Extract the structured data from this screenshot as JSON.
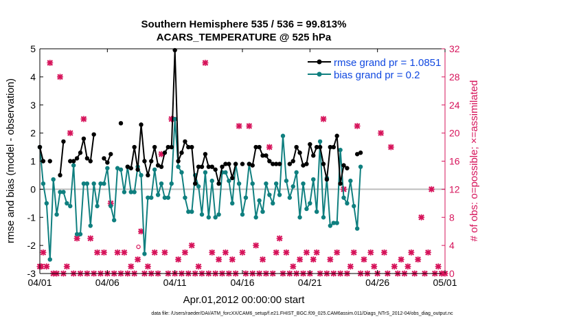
{
  "chart_data": {
    "type": "line",
    "title": "Southern Hemisphere 535 / 536 = 99.813%",
    "subtitle": "ACARS_TEMPERATURE @ 525 hPa",
    "xlabel": "Apr.01,2012 00:00:00 start",
    "ylabel_left": "rmse and bias (model - observation)",
    "ylabel_right": "# of obs: o=possible; ×=assimilated",
    "footer": "data file: /Users/raeder/DAI/ATM_forcXX/CAM6_setup/f.e21.FHIST_BGC.f09_025.CAM6assim.011/Diags_NTrS_2012-04/obs_diag_output.nc",
    "xlim": [
      0,
      30
    ],
    "ylim_left": [
      -3,
      5
    ],
    "ylim_right": [
      0,
      32
    ],
    "x_ticks": [
      0,
      5,
      10,
      15,
      20,
      25,
      30
    ],
    "x_tick_labels": [
      "04/01",
      "04/06",
      "04/11",
      "04/16",
      "04/21",
      "04/26",
      "05/01"
    ],
    "y_left_ticks": [
      -3,
      -2,
      -1,
      0,
      1,
      2,
      3,
      4,
      5
    ],
    "y_right_ticks": [
      0,
      4,
      8,
      12,
      16,
      20,
      24,
      28,
      32
    ],
    "zero_line": 0,
    "colors": {
      "rmse": "#000000",
      "bias": "#0f7f7f",
      "obs": "#d6135a",
      "zero": "#bdbdbd",
      "legend_text": "#1048e0"
    },
    "legend": {
      "placement": "top-right",
      "entries": [
        "rmse grand pr = 1.0851",
        "bias grand pr = 0.2"
      ]
    },
    "series": [
      {
        "name": "rmse",
        "points": [
          [
            0.0,
            1.5
          ],
          [
            0.25,
            1.0
          ],
          [
            0.5,
            null
          ],
          [
            0.75,
            1.0
          ],
          [
            1.0,
            null
          ],
          [
            1.25,
            null
          ],
          [
            1.5,
            0.5
          ],
          [
            1.75,
            1.7
          ],
          [
            2.0,
            null
          ],
          [
            2.25,
            1.0
          ],
          [
            2.5,
            1.0
          ],
          [
            2.75,
            1.1
          ],
          [
            3.0,
            1.3
          ],
          [
            3.25,
            1.8
          ],
          [
            3.5,
            1.1
          ],
          [
            3.75,
            1.0
          ],
          [
            4.0,
            1.95
          ],
          [
            4.25,
            null
          ],
          [
            4.5,
            null
          ],
          [
            4.75,
            1.1
          ],
          [
            5.0,
            0.95
          ],
          [
            5.25,
            1.25
          ],
          [
            5.5,
            null
          ],
          [
            5.75,
            null
          ],
          [
            6.0,
            2.35
          ],
          [
            6.25,
            null
          ],
          [
            6.5,
            0.8
          ],
          [
            6.75,
            0.75
          ],
          [
            7.0,
            1.5
          ],
          [
            7.25,
            0.7
          ],
          [
            7.5,
            2.3
          ],
          [
            7.75,
            1.0
          ],
          [
            8.0,
            0.5
          ],
          [
            8.25,
            1.0
          ],
          [
            8.5,
            1.5
          ],
          [
            8.75,
            0.85
          ],
          [
            9.0,
            0.8
          ],
          [
            9.25,
            1.3
          ],
          [
            9.5,
            1.5
          ],
          [
            9.75,
            1.5
          ],
          [
            10.0,
            4.95
          ],
          [
            10.25,
            1.0
          ],
          [
            10.5,
            1.3
          ],
          [
            10.75,
            1.7
          ],
          [
            11.0,
            1.5
          ],
          [
            11.25,
            1.5
          ],
          [
            11.5,
            0.2
          ],
          [
            11.75,
            0.8
          ],
          [
            12.0,
            0.8
          ],
          [
            12.25,
            1.25
          ],
          [
            12.5,
            0.8
          ],
          [
            12.75,
            0.8
          ],
          [
            13.0,
            0.7
          ],
          [
            13.25,
            0.2
          ],
          [
            13.5,
            0.8
          ],
          [
            13.75,
            0.9
          ],
          [
            14.0,
            0.9
          ],
          [
            14.25,
            0.4
          ],
          [
            14.5,
            0.9
          ],
          [
            14.75,
            null
          ],
          [
            15.0,
            0.9
          ],
          [
            15.25,
            null
          ],
          [
            15.5,
            0.9
          ],
          [
            15.75,
            0.85
          ],
          [
            16.0,
            1.5
          ],
          [
            16.25,
            1.5
          ],
          [
            16.5,
            1.2
          ],
          [
            16.75,
            1.2
          ],
          [
            17.0,
            1.0
          ],
          [
            17.25,
            0.9
          ],
          [
            17.5,
            0.9
          ],
          [
            17.75,
            0.9
          ],
          [
            18.0,
            null
          ],
          [
            18.25,
            null
          ],
          [
            18.5,
            0.9
          ],
          [
            18.75,
            1.0
          ],
          [
            19.0,
            1.5
          ],
          [
            19.25,
            1.3
          ],
          [
            19.5,
            0.85
          ],
          [
            19.75,
            0.9
          ],
          [
            20.0,
            1.6
          ],
          [
            20.25,
            1.2
          ],
          [
            20.5,
            1.5
          ],
          [
            20.75,
            1.5
          ],
          [
            21.0,
            0.9
          ],
          [
            21.25,
            0.35
          ],
          [
            21.5,
            1.5
          ],
          [
            21.75,
            1.5
          ],
          [
            22.0,
            1.9
          ],
          [
            22.25,
            0.2
          ],
          [
            22.5,
            0.85
          ],
          [
            22.75,
            0.75
          ],
          [
            23.0,
            null
          ],
          [
            23.25,
            null
          ],
          [
            23.5,
            1.25
          ],
          [
            23.75,
            1.3
          ]
        ]
      },
      {
        "name": "bias",
        "points": [
          [
            0.0,
            1.5
          ],
          [
            0.25,
            0.2
          ],
          [
            0.5,
            -0.5
          ],
          [
            0.75,
            -2.5
          ],
          [
            1.0,
            0.35
          ],
          [
            1.25,
            -0.9
          ],
          [
            1.5,
            -0.1
          ],
          [
            1.75,
            -0.1
          ],
          [
            2.0,
            -0.5
          ],
          [
            2.25,
            -0.6
          ],
          [
            2.5,
            0.85
          ],
          [
            2.75,
            -1.6
          ],
          [
            3.0,
            -1.6
          ],
          [
            3.25,
            0.2
          ],
          [
            3.5,
            0.2
          ],
          [
            3.75,
            -1.3
          ],
          [
            4.0,
            0.2
          ],
          [
            4.25,
            -0.6
          ],
          [
            4.5,
            0.2
          ],
          [
            4.75,
            0.2
          ],
          [
            5.0,
            0.75
          ],
          [
            5.25,
            -0.6
          ],
          [
            5.5,
            -1.1
          ],
          [
            5.75,
            0.75
          ],
          [
            6.0,
            0.7
          ],
          [
            6.25,
            -0.1
          ],
          [
            6.5,
            0.8
          ],
          [
            6.75,
            -0.1
          ],
          [
            7.0,
            -0.1
          ],
          [
            7.25,
            0.8
          ],
          [
            7.5,
            0.5
          ],
          [
            7.75,
            -2.3
          ],
          [
            8.0,
            -0.3
          ],
          [
            8.25,
            -0.3
          ],
          [
            8.5,
            0.7
          ],
          [
            8.75,
            -0.2
          ],
          [
            9.0,
            0.2
          ],
          [
            9.25,
            -0.3
          ],
          [
            9.5,
            -0.3
          ],
          [
            9.75,
            0.2
          ],
          [
            10.0,
            2.5
          ],
          [
            10.25,
            0.8
          ],
          [
            10.5,
            0.6
          ],
          [
            10.75,
            -0.3
          ],
          [
            11.0,
            -0.8
          ],
          [
            11.25,
            -0.8
          ],
          [
            11.5,
            0.5
          ],
          [
            11.75,
            0.1
          ],
          [
            12.0,
            -0.9
          ],
          [
            12.25,
            0.6
          ],
          [
            12.5,
            -1.0
          ],
          [
            12.75,
            0.3
          ],
          [
            13.0,
            -1.0
          ],
          [
            13.25,
            -0.9
          ],
          [
            13.5,
            0.6
          ],
          [
            13.75,
            0.6
          ],
          [
            14.0,
            0.3
          ],
          [
            14.25,
            -0.5
          ],
          [
            14.5,
            0.9
          ],
          [
            14.75,
            0.2
          ],
          [
            15.0,
            -0.9
          ],
          [
            15.25,
            -0.3
          ],
          [
            15.5,
            0.9
          ],
          [
            15.75,
            0.2
          ],
          [
            16.0,
            -1.0
          ],
          [
            16.25,
            -0.4
          ],
          [
            16.5,
            -0.8
          ],
          [
            16.75,
            0.2
          ],
          [
            17.0,
            -0.2
          ],
          [
            17.25,
            -0.5
          ],
          [
            17.5,
            0.2
          ],
          [
            17.75,
            -0.2
          ],
          [
            18.0,
            1.9
          ],
          [
            18.25,
            0.3
          ],
          [
            18.5,
            -0.3
          ],
          [
            18.75,
            0.1
          ],
          [
            19.0,
            0.6
          ],
          [
            19.25,
            -1.0
          ],
          [
            19.5,
            0.2
          ],
          [
            19.75,
            -0.7
          ],
          [
            20.0,
            -0.5
          ],
          [
            20.25,
            0.35
          ],
          [
            20.5,
            -0.8
          ],
          [
            20.75,
            1.7
          ],
          [
            21.0,
            -1.0
          ],
          [
            21.25,
            0.4
          ],
          [
            21.5,
            -1.3
          ],
          [
            21.75,
            -1.2
          ],
          [
            22.0,
            -1.2
          ],
          [
            22.25,
            1.4
          ],
          [
            22.5,
            -0.3
          ],
          [
            22.75,
            -0.5
          ],
          [
            23.0,
            0.3
          ],
          [
            23.25,
            -0.6
          ],
          [
            23.5,
            -1.4
          ],
          [
            23.75,
            0.8
          ]
        ]
      }
    ],
    "obs_possible": [
      [
        7.3,
        3.8
      ]
    ],
    "obs_assimilated": [
      [
        0.0,
        1
      ],
      [
        0.1,
        1
      ],
      [
        0.25,
        3
      ],
      [
        0.5,
        1
      ],
      [
        0.75,
        30
      ],
      [
        1.0,
        0
      ],
      [
        1.25,
        0
      ],
      [
        1.5,
        28
      ],
      [
        1.75,
        0
      ],
      [
        2.0,
        1
      ],
      [
        2.25,
        20
      ],
      [
        2.5,
        0
      ],
      [
        2.75,
        5
      ],
      [
        3.0,
        0
      ],
      [
        3.25,
        22
      ],
      [
        3.5,
        0
      ],
      [
        3.75,
        5
      ],
      [
        4.0,
        0
      ],
      [
        4.25,
        3
      ],
      [
        4.5,
        0
      ],
      [
        4.75,
        3
      ],
      [
        5.0,
        0
      ],
      [
        5.25,
        10
      ],
      [
        5.5,
        0
      ],
      [
        5.75,
        3
      ],
      [
        6.0,
        0
      ],
      [
        6.25,
        3
      ],
      [
        6.5,
        0
      ],
      [
        6.75,
        1
      ],
      [
        7.0,
        0
      ],
      [
        7.25,
        2
      ],
      [
        7.5,
        6
      ],
      [
        7.75,
        0
      ],
      [
        8.0,
        1
      ],
      [
        8.25,
        0
      ],
      [
        8.5,
        3
      ],
      [
        8.75,
        0
      ],
      [
        9.0,
        17
      ],
      [
        9.25,
        3
      ],
      [
        9.5,
        0
      ],
      [
        9.75,
        22
      ],
      [
        10.0,
        0
      ],
      [
        10.25,
        2
      ],
      [
        10.5,
        0
      ],
      [
        10.75,
        3
      ],
      [
        11.0,
        0
      ],
      [
        11.25,
        4
      ],
      [
        11.5,
        0
      ],
      [
        11.75,
        1
      ],
      [
        12.0,
        0
      ],
      [
        12.25,
        30
      ],
      [
        12.5,
        0
      ],
      [
        12.75,
        3
      ],
      [
        13.0,
        0
      ],
      [
        13.25,
        2
      ],
      [
        13.5,
        0
      ],
      [
        13.75,
        3
      ],
      [
        14.0,
        0
      ],
      [
        14.25,
        2
      ],
      [
        14.5,
        0
      ],
      [
        14.75,
        21
      ],
      [
        15.0,
        3
      ],
      [
        15.25,
        0
      ],
      [
        15.5,
        21
      ],
      [
        15.75,
        0
      ],
      [
        16.0,
        4
      ],
      [
        16.25,
        0
      ],
      [
        16.5,
        2
      ],
      [
        16.75,
        0
      ],
      [
        17.0,
        18
      ],
      [
        17.25,
        0
      ],
      [
        17.5,
        3
      ],
      [
        17.75,
        5
      ],
      [
        18.0,
        0
      ],
      [
        18.25,
        3
      ],
      [
        18.5,
        0
      ],
      [
        18.75,
        1
      ],
      [
        19.0,
        0
      ],
      [
        19.25,
        2
      ],
      [
        19.5,
        0
      ],
      [
        19.75,
        3
      ],
      [
        20.0,
        0
      ],
      [
        20.25,
        2
      ],
      [
        20.5,
        3
      ],
      [
        20.75,
        0
      ],
      [
        21.0,
        22
      ],
      [
        21.25,
        0
      ],
      [
        21.5,
        2
      ],
      [
        21.75,
        0
      ],
      [
        22.0,
        3
      ],
      [
        22.25,
        0
      ],
      [
        22.5,
        12
      ],
      [
        22.75,
        0
      ],
      [
        23.0,
        1
      ],
      [
        23.25,
        3
      ],
      [
        23.5,
        21
      ],
      [
        23.75,
        0
      ],
      [
        24.0,
        2
      ],
      [
        24.25,
        0
      ],
      [
        24.5,
        3
      ],
      [
        24.75,
        1
      ],
      [
        25.0,
        0
      ],
      [
        25.25,
        20
      ],
      [
        25.5,
        3
      ],
      [
        25.75,
        0
      ],
      [
        26.0,
        18
      ],
      [
        26.25,
        1
      ],
      [
        26.5,
        0
      ],
      [
        26.75,
        2
      ],
      [
        27.0,
        0
      ],
      [
        27.25,
        1
      ],
      [
        27.5,
        3
      ],
      [
        27.75,
        0
      ],
      [
        28.0,
        2
      ],
      [
        28.25,
        8
      ],
      [
        28.5,
        0
      ],
      [
        28.75,
        3
      ],
      [
        29.0,
        12
      ],
      [
        29.25,
        0
      ],
      [
        29.5,
        1
      ],
      [
        29.75,
        0
      ],
      [
        30.0,
        0
      ]
    ]
  }
}
